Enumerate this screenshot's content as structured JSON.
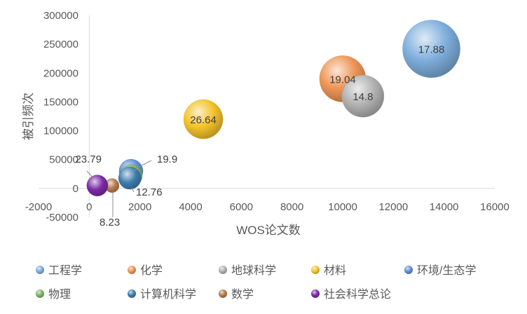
{
  "chart_data": {
    "type": "bubble",
    "xlabel": "WOS论文数",
    "ylabel": "被引频次",
    "xlim": [
      -2000,
      16000
    ],
    "ylim": [
      -50000,
      300000
    ],
    "x_ticks": [
      "-2000",
      "0",
      "2000",
      "4000",
      "6000",
      "8000",
      "10000",
      "12000",
      "14000",
      "16000"
    ],
    "y_ticks": [
      "-50000",
      "0",
      "50000",
      "100000",
      "150000",
      "200000",
      "250000",
      "300000"
    ],
    "legend_position": "bottom",
    "series": [
      {
        "name": "工程学",
        "x": 13500,
        "y": 242000,
        "size": 17.88,
        "label": "17.88",
        "color": "#7EAEDC"
      },
      {
        "name": "化学",
        "x": 10000,
        "y": 190000,
        "size": 19.04,
        "label": "19.04",
        "color": "#EE9556"
      },
      {
        "name": "地球科学",
        "x": 10800,
        "y": 160000,
        "size": 14.8,
        "label": "14.8",
        "color": "#B2B2B2"
      },
      {
        "name": "材料",
        "x": 4500,
        "y": 120000,
        "size": 26.64,
        "label": "26.64",
        "color": "#F4C32B"
      },
      {
        "name": "环境/生态学",
        "x": 1650,
        "y": 30000,
        "size": 19.9,
        "label": "19.9",
        "color": "#6090D4"
      },
      {
        "name": "物理",
        "x": 1650,
        "y": 22000,
        "size": null,
        "label": "",
        "color": "#7EB464"
      },
      {
        "name": "计算机科学",
        "x": 1600,
        "y": 18000,
        "size": 12.76,
        "label": "12.76",
        "color": "#3E7EAE"
      },
      {
        "name": "数学",
        "x": 900,
        "y": 5000,
        "size": 8.23,
        "label": "8.23",
        "color": "#B87A4E"
      },
      {
        "name": "社会科学总论",
        "x": 320,
        "y": 5000,
        "size": 23.79,
        "label": "23.79",
        "color": "#7B2BA8"
      }
    ]
  }
}
